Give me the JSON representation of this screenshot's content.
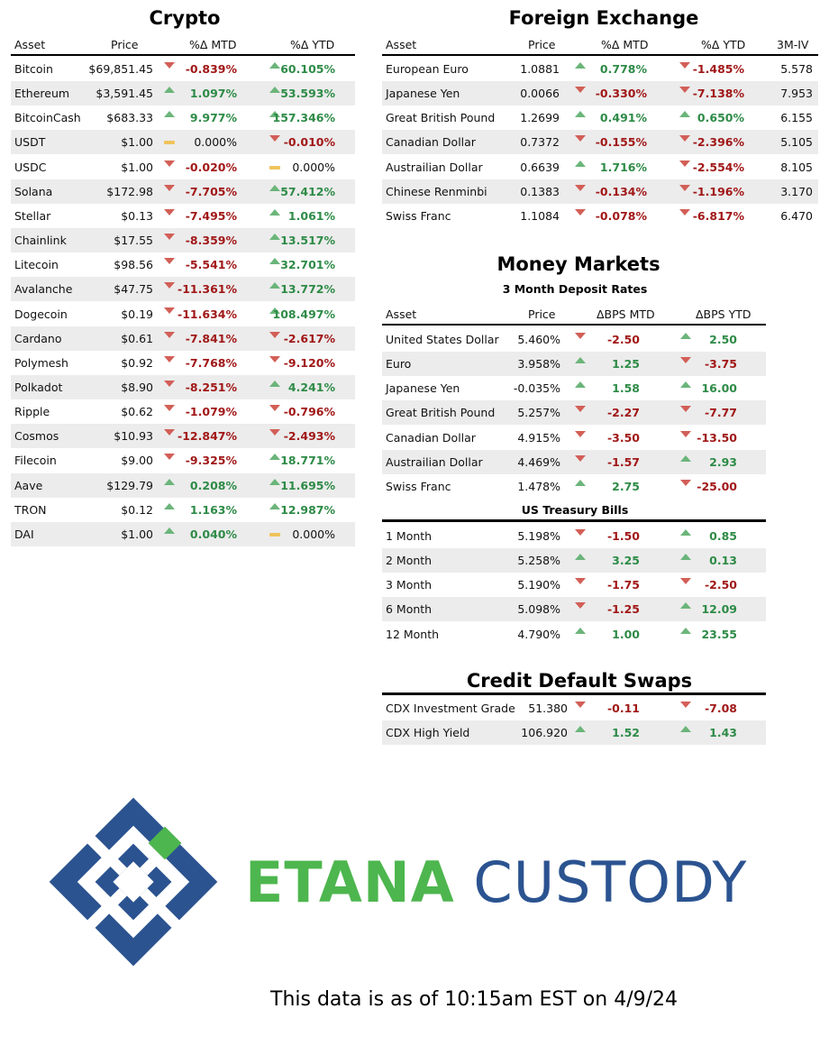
{
  "colors": {
    "positive": "#2e8b47",
    "negative": "#a11818",
    "up_icon": "#6bb57a",
    "down_icon": "#d25f57",
    "flat_icon": "#f0c45c",
    "brand_green": "#4db64e",
    "brand_blue": "#2b5390"
  },
  "crypto": {
    "title": "Crypto",
    "headers": [
      "Asset",
      "Price",
      "%Δ MTD",
      "%Δ YTD"
    ],
    "rows": [
      {
        "asset": "Bitcoin",
        "price": "$69,851.45",
        "mtd": "-0.839%",
        "mtd_dir": "down",
        "ytd": "60.105%",
        "ytd_dir": "up"
      },
      {
        "asset": "Ethereum",
        "price": "$3,591.45",
        "mtd": "1.097%",
        "mtd_dir": "up",
        "ytd": "53.593%",
        "ytd_dir": "up"
      },
      {
        "asset": "BitcoinCash",
        "price": "$683.33",
        "mtd": "9.977%",
        "mtd_dir": "up",
        "ytd": "157.346%",
        "ytd_dir": "up"
      },
      {
        "asset": "USDT",
        "price": "$1.00",
        "mtd": "0.000%",
        "mtd_dir": "flat",
        "ytd": "-0.010%",
        "ytd_dir": "down"
      },
      {
        "asset": "USDC",
        "price": "$1.00",
        "mtd": "-0.020%",
        "mtd_dir": "down",
        "ytd": "0.000%",
        "ytd_dir": "flat"
      },
      {
        "asset": "Solana",
        "price": "$172.98",
        "mtd": "-7.705%",
        "mtd_dir": "down",
        "ytd": "57.412%",
        "ytd_dir": "up"
      },
      {
        "asset": "Stellar",
        "price": "$0.13",
        "mtd": "-7.495%",
        "mtd_dir": "down",
        "ytd": "1.061%",
        "ytd_dir": "up"
      },
      {
        "asset": "Chainlink",
        "price": "$17.55",
        "mtd": "-8.359%",
        "mtd_dir": "down",
        "ytd": "13.517%",
        "ytd_dir": "up"
      },
      {
        "asset": "Litecoin",
        "price": "$98.56",
        "mtd": "-5.541%",
        "mtd_dir": "down",
        "ytd": "32.701%",
        "ytd_dir": "up"
      },
      {
        "asset": "Avalanche",
        "price": "$47.75",
        "mtd": "-11.361%",
        "mtd_dir": "down",
        "ytd": "13.772%",
        "ytd_dir": "up"
      },
      {
        "asset": "Dogecoin",
        "price": "$0.19",
        "mtd": "-11.634%",
        "mtd_dir": "down",
        "ytd": "108.497%",
        "ytd_dir": "up"
      },
      {
        "asset": "Cardano",
        "price": "$0.61",
        "mtd": "-7.841%",
        "mtd_dir": "down",
        "ytd": "-2.617%",
        "ytd_dir": "down"
      },
      {
        "asset": "Polymesh",
        "price": "$0.92",
        "mtd": "-7.768%",
        "mtd_dir": "down",
        "ytd": "-9.120%",
        "ytd_dir": "down"
      },
      {
        "asset": "Polkadot",
        "price": "$8.90",
        "mtd": "-8.251%",
        "mtd_dir": "down",
        "ytd": "4.241%",
        "ytd_dir": "up"
      },
      {
        "asset": "Ripple",
        "price": "$0.62",
        "mtd": "-1.079%",
        "mtd_dir": "down",
        "ytd": "-0.796%",
        "ytd_dir": "down"
      },
      {
        "asset": "Cosmos",
        "price": "$10.93",
        "mtd": "-12.847%",
        "mtd_dir": "down",
        "ytd": "-2.493%",
        "ytd_dir": "down"
      },
      {
        "asset": "Filecoin",
        "price": "$9.00",
        "mtd": "-9.325%",
        "mtd_dir": "down",
        "ytd": "18.771%",
        "ytd_dir": "up"
      },
      {
        "asset": "Aave",
        "price": "$129.79",
        "mtd": "0.208%",
        "mtd_dir": "up",
        "ytd": "11.695%",
        "ytd_dir": "up"
      },
      {
        "asset": "TRON",
        "price": "$0.12",
        "mtd": "1.163%",
        "mtd_dir": "up",
        "ytd": "12.987%",
        "ytd_dir": "up"
      },
      {
        "asset": "DAI",
        "price": "$1.00",
        "mtd": "0.040%",
        "mtd_dir": "up",
        "ytd": "0.000%",
        "ytd_dir": "flat"
      }
    ]
  },
  "fx": {
    "title": "Foreign Exchange",
    "headers": [
      "Asset",
      "Price",
      "%Δ MTD",
      "%Δ YTD",
      "3M-IV"
    ],
    "rows": [
      {
        "asset": "European Euro",
        "price": "1.0881",
        "mtd": "0.778%",
        "mtd_dir": "up",
        "ytd": "-1.485%",
        "ytd_dir": "down",
        "iv": "5.578"
      },
      {
        "asset": "Japanese Yen",
        "price": "0.0066",
        "mtd": "-0.330%",
        "mtd_dir": "down",
        "ytd": "-7.138%",
        "ytd_dir": "down",
        "iv": "7.953"
      },
      {
        "asset": "Great British Pound",
        "price": "1.2699",
        "mtd": "0.491%",
        "mtd_dir": "up",
        "ytd": "0.650%",
        "ytd_dir": "up",
        "iv": "6.155"
      },
      {
        "asset": "Canadian Dollar",
        "price": "0.7372",
        "mtd": "-0.155%",
        "mtd_dir": "down",
        "ytd": "-2.396%",
        "ytd_dir": "down",
        "iv": "5.105"
      },
      {
        "asset": "Austrailian Dollar",
        "price": "0.6639",
        "mtd": "1.716%",
        "mtd_dir": "up",
        "ytd": "-2.554%",
        "ytd_dir": "down",
        "iv": "8.105"
      },
      {
        "asset": "Chinese Renminbi",
        "price": "0.1383",
        "mtd": "-0.134%",
        "mtd_dir": "down",
        "ytd": "-1.196%",
        "ytd_dir": "down",
        "iv": "3.170"
      },
      {
        "asset": "Swiss Franc",
        "price": "1.1084",
        "mtd": "-0.078%",
        "mtd_dir": "down",
        "ytd": "-6.817%",
        "ytd_dir": "down",
        "iv": "6.470"
      }
    ]
  },
  "money": {
    "title": "Money Markets",
    "subtitle": "3 Month Deposit Rates",
    "headers": [
      "Asset",
      "Price",
      "ΔBPS MTD",
      "ΔBPS YTD"
    ],
    "rows": [
      {
        "asset": "United States Dollar",
        "price": "5.460%",
        "mtd": "-2.50",
        "mtd_dir": "down",
        "ytd": "2.50",
        "ytd_dir": "up"
      },
      {
        "asset": "Euro",
        "price": "3.958%",
        "mtd": "1.25",
        "mtd_dir": "up",
        "ytd": "-3.75",
        "ytd_dir": "down"
      },
      {
        "asset": "Japanese Yen",
        "price": "-0.035%",
        "mtd": "1.58",
        "mtd_dir": "up",
        "ytd": "16.00",
        "ytd_dir": "up"
      },
      {
        "asset": "Great British Pound",
        "price": "5.257%",
        "mtd": "-2.27",
        "mtd_dir": "down",
        "ytd": "-7.77",
        "ytd_dir": "down"
      },
      {
        "asset": "Canadian Dollar",
        "price": "4.915%",
        "mtd": "-3.50",
        "mtd_dir": "down",
        "ytd": "-13.50",
        "ytd_dir": "down"
      },
      {
        "asset": "Austrailian Dollar",
        "price": "4.469%",
        "mtd": "-1.57",
        "mtd_dir": "down",
        "ytd": "2.93",
        "ytd_dir": "up"
      },
      {
        "asset": "Swiss Franc",
        "price": "1.478%",
        "mtd": "2.75",
        "mtd_dir": "up",
        "ytd": "-25.00",
        "ytd_dir": "down"
      }
    ]
  },
  "tbills": {
    "subtitle": "US Treasury Bills",
    "rows": [
      {
        "asset": "1 Month",
        "price": "5.198%",
        "mtd": "-1.50",
        "mtd_dir": "down",
        "ytd": "0.85",
        "ytd_dir": "up"
      },
      {
        "asset": "2 Month",
        "price": "5.258%",
        "mtd": "3.25",
        "mtd_dir": "up",
        "ytd": "0.13",
        "ytd_dir": "up"
      },
      {
        "asset": "3 Month",
        "price": "5.190%",
        "mtd": "-1.75",
        "mtd_dir": "down",
        "ytd": "-2.50",
        "ytd_dir": "down"
      },
      {
        "asset": "6 Month",
        "price": "5.098%",
        "mtd": "-1.25",
        "mtd_dir": "down",
        "ytd": "12.09",
        "ytd_dir": "up"
      },
      {
        "asset": "12 Month",
        "price": "4.790%",
        "mtd": "1.00",
        "mtd_dir": "up",
        "ytd": "23.55",
        "ytd_dir": "up"
      }
    ]
  },
  "cds": {
    "title": "Credit Default Swaps",
    "rows": [
      {
        "asset": "CDX Investment Grade",
        "price": "51.380",
        "mtd": "-0.11",
        "mtd_dir": "down",
        "ytd": "-7.08",
        "ytd_dir": "down"
      },
      {
        "asset": "CDX High Yield",
        "price": "106.920",
        "mtd": "1.52",
        "mtd_dir": "up",
        "ytd": "1.43",
        "ytd_dir": "up"
      }
    ]
  },
  "brand": {
    "word1": "ETANA",
    "word2": "CUSTODY",
    "logo_icon": "etana-logo-icon"
  },
  "footnote": "This data is as of 10:15am EST on 4/9/24"
}
